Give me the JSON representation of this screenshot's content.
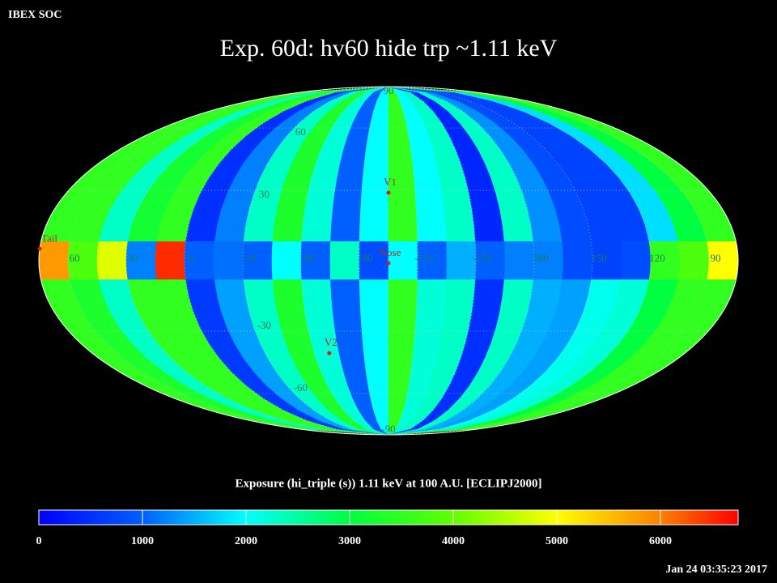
{
  "chart_data": {
    "type": "skymap",
    "source": "IBEX SOC",
    "title": "Exp.   60d: hv60 hide trp ~1.11 keV",
    "colorbar_label": "Exposure (hi_triple (s))  1.11 keV at 100 A.U. [ECLIPJ2000]",
    "timestamp": "Jan 24 03:35:23 2017",
    "xlim": [
      75,
      -285
    ],
    "ylim": [
      -90,
      90
    ],
    "xticks": [
      60,
      30,
      0,
      -30,
      -60,
      -90,
      -120,
      -150,
      180,
      150,
      120,
      90
    ],
    "yticks": [
      90,
      60,
      30,
      -30,
      -60,
      -90
    ],
    "grid": true,
    "lat_edges": [
      90,
      8,
      -8,
      -90
    ],
    "z": [
      [
        3500,
        3500,
        2300,
        3200,
        3500,
        500,
        1200,
        2300,
        3300,
        2200,
        1000,
        2000,
        3500,
        2000,
        2300,
        400,
        2300,
        1300,
        800,
        700,
        700,
        1800,
        3000,
        3500
      ],
      [
        5800,
        3800,
        4800,
        1200,
        6500,
        1000,
        1100,
        1000,
        2000,
        1000,
        2300,
        800,
        2000,
        1000,
        1500,
        1000,
        1200,
        1200,
        800,
        700,
        800,
        3500,
        3800,
        5000
      ],
      [
        3500,
        3300,
        2300,
        3500,
        3500,
        600,
        1400,
        2300,
        3300,
        2200,
        1000,
        2000,
        3500,
        2200,
        2300,
        500,
        2300,
        1500,
        1400,
        2100,
        2200,
        3000,
        3500,
        3500
      ]
    ],
    "clim": [
      0,
      6750
    ],
    "colorscale": [
      [
        0,
        "#0000ff"
      ],
      [
        1000,
        "#0060ff"
      ],
      [
        2000,
        "#00ffff"
      ],
      [
        3000,
        "#00ff40"
      ],
      [
        4000,
        "#60ff00"
      ],
      [
        5000,
        "#ffff00"
      ],
      [
        6000,
        "#ff8000"
      ],
      [
        6750,
        "#ff0000"
      ]
    ],
    "cticks": [
      0,
      1000,
      2000,
      3000,
      4000,
      5000,
      6000
    ],
    "markers": [
      {
        "label": "V1",
        "lon": -105,
        "lat": 29
      },
      {
        "label": "Nose",
        "lon": -105,
        "lat": -1
      },
      {
        "label": "V2",
        "lon": -69,
        "lat": -40
      },
      {
        "label": "Tail",
        "lon": 75,
        "lat": 5
      }
    ]
  }
}
